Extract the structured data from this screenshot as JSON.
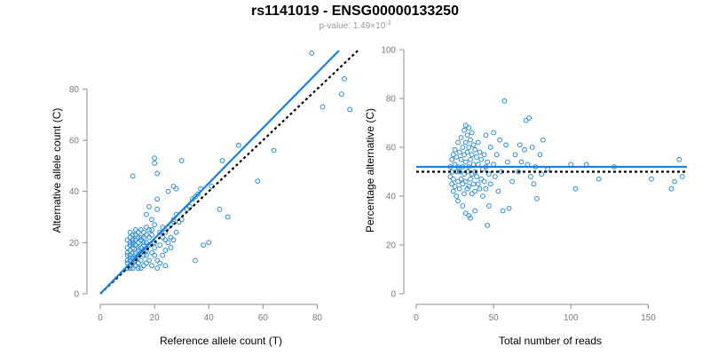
{
  "figure": {
    "title": "rs1141019 - ENSG00000133250",
    "subtitle_label": "p-value: ",
    "subtitle_value": "1.49×10",
    "subtitle_exponent": "-3"
  },
  "colors": {
    "points": "#2a8ad6",
    "regression": "#1a80e0",
    "reference": "#000000",
    "axis": "#8c8c8c",
    "tick_text": "#7a7a7a"
  },
  "chart_data": [
    {
      "type": "scatter",
      "xlabel": "Reference allele count (T)",
      "ylabel": "Alternative allele count (C)",
      "xlim": [
        0,
        90
      ],
      "ylim": [
        0,
        95
      ],
      "xticks": [
        0,
        20,
        40,
        60,
        80
      ],
      "yticks": [
        0,
        20,
        40,
        60,
        80
      ],
      "regression_line": {
        "x": [
          0,
          88
        ],
        "y": [
          0,
          95
        ]
      },
      "reference_line": {
        "x": [
          0,
          95
        ],
        "y": [
          0,
          95
        ]
      },
      "points": [
        [
          78,
          94
        ],
        [
          92,
          72
        ],
        [
          90,
          84
        ],
        [
          89,
          78
        ],
        [
          82,
          73
        ],
        [
          64,
          56
        ],
        [
          58,
          44
        ],
        [
          51,
          58
        ],
        [
          47,
          30
        ],
        [
          45,
          52
        ],
        [
          44,
          33
        ],
        [
          41,
          42
        ],
        [
          40,
          20
        ],
        [
          38,
          19
        ],
        [
          35,
          13
        ],
        [
          36,
          39
        ],
        [
          37,
          41
        ],
        [
          35,
          38
        ],
        [
          34,
          37
        ],
        [
          33,
          34
        ],
        [
          32,
          33
        ],
        [
          30,
          52
        ],
        [
          30,
          29
        ],
        [
          29,
          28
        ],
        [
          28,
          41
        ],
        [
          27,
          42
        ],
        [
          28,
          24
        ],
        [
          27,
          21
        ],
        [
          26,
          22
        ],
        [
          25,
          40
        ],
        [
          26,
          18
        ],
        [
          25,
          26
        ],
        [
          24,
          21
        ],
        [
          24,
          17
        ],
        [
          23,
          26
        ],
        [
          23,
          15
        ],
        [
          22,
          24
        ],
        [
          22,
          12
        ],
        [
          21,
          37
        ],
        [
          21,
          33
        ],
        [
          21,
          47
        ],
        [
          20,
          53
        ],
        [
          20,
          51
        ],
        [
          20,
          27
        ],
        [
          20,
          20
        ],
        [
          20,
          18
        ],
        [
          19,
          29
        ],
        [
          19,
          23
        ],
        [
          19,
          16
        ],
        [
          19,
          11
        ],
        [
          18,
          34
        ],
        [
          18,
          25
        ],
        [
          18,
          19
        ],
        [
          18,
          13
        ],
        [
          17,
          31
        ],
        [
          17,
          26
        ],
        [
          17,
          20
        ],
        [
          17,
          17
        ],
        [
          17,
          12
        ],
        [
          16,
          24
        ],
        [
          16,
          22
        ],
        [
          16,
          19
        ],
        [
          16,
          15
        ],
        [
          16,
          11
        ],
        [
          15,
          25
        ],
        [
          15,
          21
        ],
        [
          15,
          18
        ],
        [
          15,
          16
        ],
        [
          15,
          13
        ],
        [
          15,
          10
        ],
        [
          14,
          24
        ],
        [
          14,
          22
        ],
        [
          14,
          20
        ],
        [
          14,
          17
        ],
        [
          14,
          15
        ],
        [
          14,
          12
        ],
        [
          14,
          10
        ],
        [
          13,
          25
        ],
        [
          13,
          21
        ],
        [
          13,
          19
        ],
        [
          13,
          16
        ],
        [
          13,
          13
        ],
        [
          13,
          11
        ],
        [
          12,
          46
        ],
        [
          12,
          23
        ],
        [
          12,
          20
        ],
        [
          12,
          18
        ],
        [
          12,
          16
        ],
        [
          12,
          14
        ],
        [
          12,
          12
        ],
        [
          12,
          10
        ],
        [
          11,
          24
        ],
        [
          11,
          22
        ],
        [
          11,
          20
        ],
        [
          11,
          17
        ],
        [
          11,
          15
        ],
        [
          11,
          13
        ],
        [
          11,
          11
        ],
        [
          11,
          10
        ],
        [
          10,
          21
        ],
        [
          10,
          18
        ],
        [
          10,
          15
        ],
        [
          10,
          12
        ],
        [
          10,
          10
        ],
        [
          21,
          13
        ],
        [
          22,
          19
        ],
        [
          23,
          22
        ],
        [
          24,
          24
        ],
        [
          25,
          20
        ],
        [
          26,
          27
        ],
        [
          27,
          29
        ],
        [
          19,
          25
        ],
        [
          18,
          22
        ],
        [
          17,
          23
        ],
        [
          16,
          20
        ],
        [
          15,
          22
        ],
        [
          14,
          18
        ],
        [
          13,
          23
        ],
        [
          13,
          14
        ],
        [
          12,
          21
        ],
        [
          12,
          19
        ],
        [
          11,
          19
        ],
        [
          11,
          14
        ],
        [
          10,
          16
        ],
        [
          10,
          13
        ],
        [
          20,
          15
        ],
        [
          21,
          10
        ],
        [
          24,
          11
        ],
        [
          28,
          31
        ],
        [
          17,
          15
        ],
        [
          16,
          17
        ]
      ]
    },
    {
      "type": "scatter",
      "xlabel": "Total number of reads",
      "ylabel": "Percentage alternative (C)",
      "xlim": [
        0,
        175
      ],
      "ylim": [
        0,
        100
      ],
      "xticks": [
        0,
        50,
        100,
        150
      ],
      "yticks": [
        0,
        20,
        40,
        60,
        80,
        100
      ],
      "regression_line": {
        "x": [
          0,
          175
        ],
        "y": [
          52,
          52
        ]
      },
      "reference_line": {
        "x": [
          0,
          175
        ],
        "y": [
          50,
          50
        ]
      },
      "points": [
        [
          22,
          52
        ],
        [
          22,
          48
        ],
        [
          23,
          55
        ],
        [
          23,
          45
        ],
        [
          23,
          50
        ],
        [
          24,
          57
        ],
        [
          24,
          47
        ],
        [
          24,
          42
        ],
        [
          25,
          53
        ],
        [
          25,
          59
        ],
        [
          25,
          44
        ],
        [
          26,
          50
        ],
        [
          26,
          56
        ],
        [
          26,
          40
        ],
        [
          27,
          62
        ],
        [
          27,
          52
        ],
        [
          27,
          46
        ],
        [
          27,
          38
        ],
        [
          28,
          58
        ],
        [
          28,
          50
        ],
        [
          28,
          43
        ],
        [
          29,
          64
        ],
        [
          29,
          55
        ],
        [
          29,
          47
        ],
        [
          30,
          60
        ],
        [
          30,
          52
        ],
        [
          30,
          45
        ],
        [
          30,
          36
        ],
        [
          31,
          67
        ],
        [
          31,
          57
        ],
        [
          31,
          49
        ],
        [
          31,
          41
        ],
        [
          32,
          69
        ],
        [
          32,
          62
        ],
        [
          32,
          54
        ],
        [
          32,
          46
        ],
        [
          32,
          33
        ],
        [
          33,
          65
        ],
        [
          33,
          58
        ],
        [
          33,
          50
        ],
        [
          33,
          43
        ],
        [
          34,
          68
        ],
        [
          34,
          60
        ],
        [
          34,
          52
        ],
        [
          34,
          44
        ],
        [
          34,
          32
        ],
        [
          35,
          63
        ],
        [
          35,
          55
        ],
        [
          35,
          47
        ],
        [
          35,
          31
        ],
        [
          36,
          66
        ],
        [
          36,
          57
        ],
        [
          36,
          49
        ],
        [
          36,
          41
        ],
        [
          37,
          61
        ],
        [
          37,
          53
        ],
        [
          37,
          45
        ],
        [
          38,
          59
        ],
        [
          38,
          50
        ],
        [
          38,
          42
        ],
        [
          38,
          34
        ],
        [
          39,
          56
        ],
        [
          39,
          48
        ],
        [
          40,
          62
        ],
        [
          40,
          53
        ],
        [
          40,
          45
        ],
        [
          41,
          58
        ],
        [
          41,
          43
        ],
        [
          42,
          55
        ],
        [
          42,
          47
        ],
        [
          43,
          51
        ],
        [
          43,
          40
        ],
        [
          44,
          57
        ],
        [
          44,
          46
        ],
        [
          45,
          65
        ],
        [
          45,
          52
        ],
        [
          45,
          43
        ],
        [
          46,
          54
        ],
        [
          46,
          28
        ],
        [
          47,
          49
        ],
        [
          47,
          36
        ],
        [
          48,
          60
        ],
        [
          48,
          45
        ],
        [
          50,
          66
        ],
        [
          50,
          53
        ],
        [
          51,
          48
        ],
        [
          52,
          57
        ],
        [
          53,
          42
        ],
        [
          54,
          63
        ],
        [
          55,
          50
        ],
        [
          56,
          34
        ],
        [
          57,
          79
        ],
        [
          58,
          61
        ],
        [
          59,
          54
        ],
        [
          60,
          35
        ],
        [
          62,
          46
        ],
        [
          64,
          57
        ],
        [
          66,
          50
        ],
        [
          67,
          61
        ],
        [
          68,
          54
        ],
        [
          70,
          59
        ],
        [
          71,
          71
        ],
        [
          72,
          53
        ],
        [
          73,
          72
        ],
        [
          74,
          48
        ],
        [
          75,
          60
        ],
        [
          76,
          45
        ],
        [
          77,
          52
        ],
        [
          78,
          39
        ],
        [
          80,
          57
        ],
        [
          81,
          49
        ],
        [
          82,
          63
        ],
        [
          85,
          51
        ],
        [
          100,
          53
        ],
        [
          103,
          43
        ],
        [
          110,
          53
        ],
        [
          118,
          47
        ],
        [
          128,
          52
        ],
        [
          152,
          47
        ],
        [
          165,
          43
        ],
        [
          167,
          46
        ],
        [
          170,
          55
        ],
        [
          172,
          48
        ]
      ]
    }
  ]
}
